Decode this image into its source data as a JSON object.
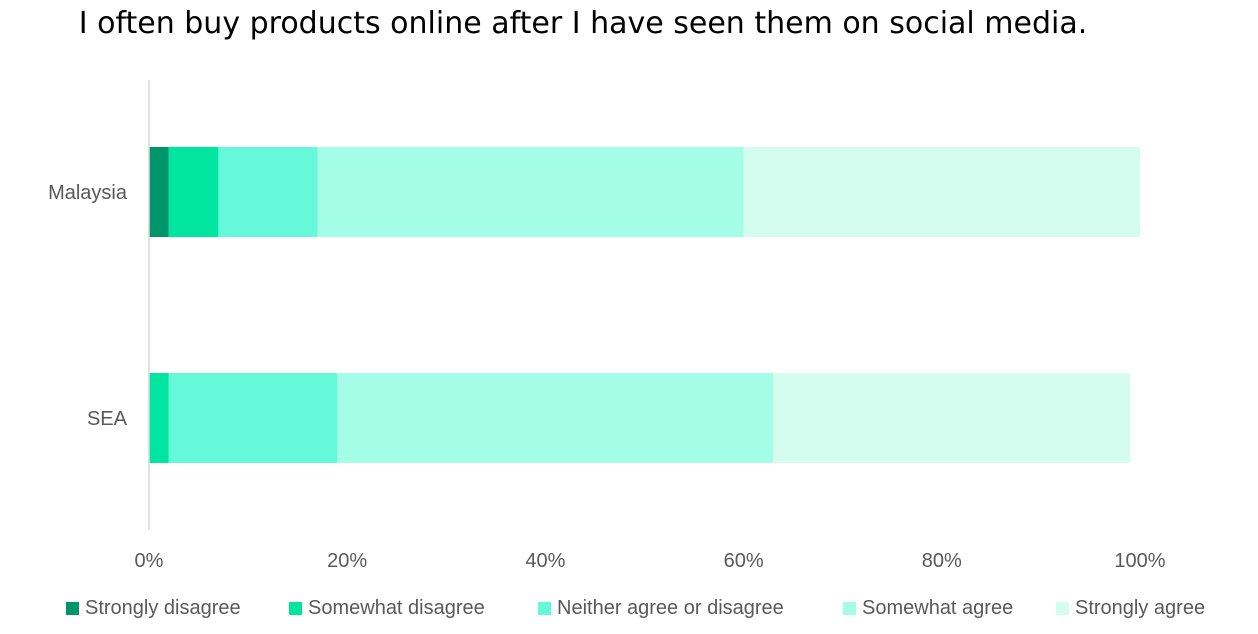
{
  "chart_data": {
    "type": "bar",
    "orientation": "horizontal",
    "stacked": true,
    "title": "I often buy products online after I have seen them on social media.",
    "categories": [
      "Malaysia",
      "SEA"
    ],
    "series": [
      {
        "name": "Strongly disagree",
        "color": "#00956A",
        "values": [
          2,
          0
        ]
      },
      {
        "name": "Somewhat disagree",
        "color": "#00E5A0",
        "values": [
          5,
          2
        ]
      },
      {
        "name": "Neither agree or disagree",
        "color": "#66F9D9",
        "values": [
          10,
          17
        ]
      },
      {
        "name": "Somewhat agree",
        "color": "#A4FDE6",
        "values": [
          43,
          44
        ]
      },
      {
        "name": "Strongly agree",
        "color": "#D4FDF0",
        "values": [
          40,
          36
        ]
      }
    ],
    "x_ticks": [
      "0%",
      "20%",
      "40%",
      "60%",
      "80%",
      "100%"
    ],
    "xlim": [
      0,
      100
    ],
    "x_unit": "%",
    "grid": false,
    "legend_position": "bottom"
  }
}
